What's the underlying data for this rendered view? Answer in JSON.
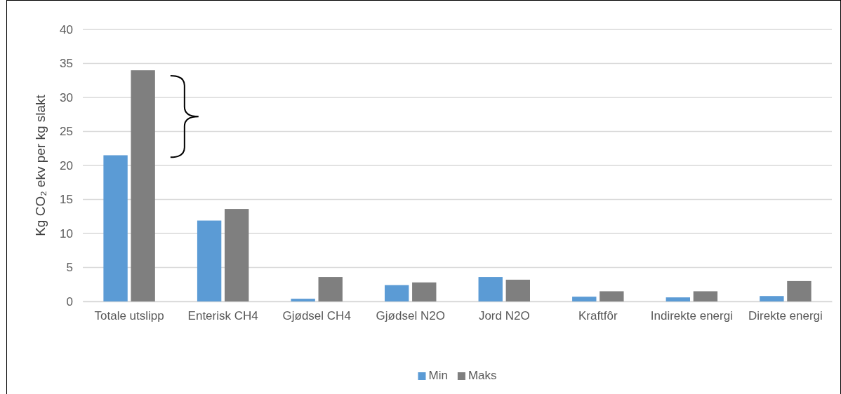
{
  "chart_data": {
    "type": "bar",
    "ylabel": "Kg CO₂ ekv per kg slakt",
    "categories": [
      "Totale utslipp",
      "Enterisk CH4",
      "Gjødsel CH4",
      "Gjødsel N2O",
      "Jord N2O",
      "Kraftfôr",
      "Indirekte energi",
      "Direkte energi"
    ],
    "series": [
      {
        "name": "Min",
        "color": "#5b9bd5",
        "values": [
          21.5,
          11.9,
          0.4,
          2.4,
          3.6,
          0.7,
          0.6,
          0.8
        ]
      },
      {
        "name": "Maks",
        "color": "#7f7f7f",
        "values": [
          34.0,
          13.6,
          3.6,
          2.8,
          3.2,
          1.5,
          1.5,
          3.0
        ]
      }
    ],
    "ylim": [
      0,
      40
    ],
    "yticks": [
      0,
      5,
      10,
      15,
      20,
      25,
      30,
      35,
      40
    ],
    "grid": "y",
    "legend": "bottom"
  }
}
